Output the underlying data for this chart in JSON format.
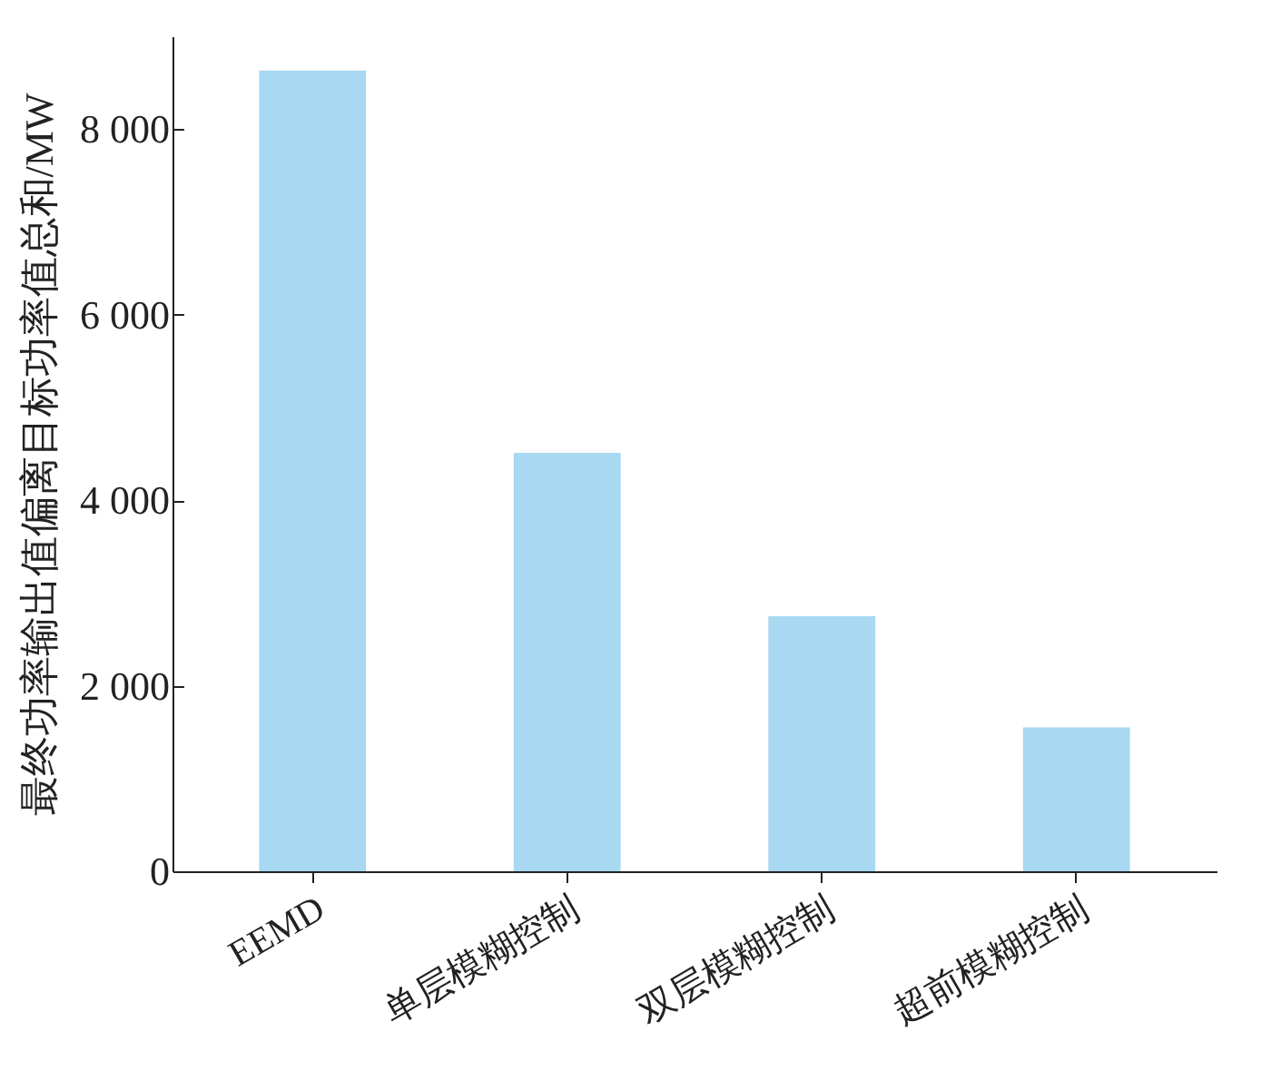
{
  "chart_data": {
    "type": "bar",
    "ylabel": "最终功率输出值偏离目标功率值总和/MW",
    "categories": [
      "EEMD",
      "单层模糊控制",
      "双层模糊控制",
      "超前模糊控制"
    ],
    "values": [
      8630,
      4510,
      2750,
      1550
    ],
    "color": "#a8d8f2",
    "ylim": [
      0,
      9000
    ],
    "yticks": [
      0,
      {
        "value": 2000,
        "label": "2 000"
      },
      {
        "value": 4000,
        "label": "4 000"
      },
      {
        "value": 6000,
        "label": "6 000"
      },
      {
        "value": 8000,
        "label": "8 000"
      }
    ],
    "grid": false
  }
}
